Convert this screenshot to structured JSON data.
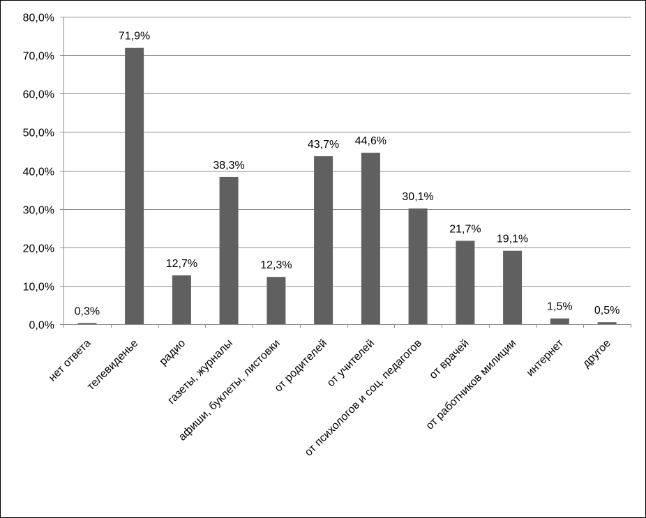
{
  "chart_data": {
    "type": "bar",
    "title": "",
    "xlabel": "",
    "ylabel": "",
    "ylim": [
      0,
      80
    ],
    "y_tick_values": [
      0,
      10,
      20,
      30,
      40,
      50,
      60,
      70,
      80
    ],
    "y_tick_labels": [
      "0,0%",
      "10,0%",
      "20,0%",
      "30,0%",
      "40,0%",
      "50,0%",
      "60,0%",
      "70,0%",
      "80,0%"
    ],
    "grid": true,
    "legend": "none",
    "categories": [
      "нет ответа",
      "телевиденье",
      "радио",
      "газеты, журналы",
      "афиши, буклеты, листовки",
      "от родителей",
      "от учителей",
      "от психологов и соц. педагогов",
      "от врачей",
      "от работников милиции",
      "интернет",
      "другое"
    ],
    "values": [
      0.3,
      71.9,
      12.7,
      38.3,
      12.3,
      43.7,
      44.6,
      30.1,
      21.7,
      19.1,
      1.5,
      0.5
    ],
    "data_labels": [
      "0,3%",
      "71,9%",
      "12,7%",
      "38,3%",
      "12,3%",
      "43,7%",
      "44,6%",
      "30,1%",
      "21,7%",
      "19,1%",
      "1,5%",
      "0,5%"
    ],
    "colors": {
      "bar": "#606060",
      "grid": "#8c8c8c",
      "axis": "#8c8c8c",
      "text": "#000000",
      "border": "#000000"
    }
  }
}
